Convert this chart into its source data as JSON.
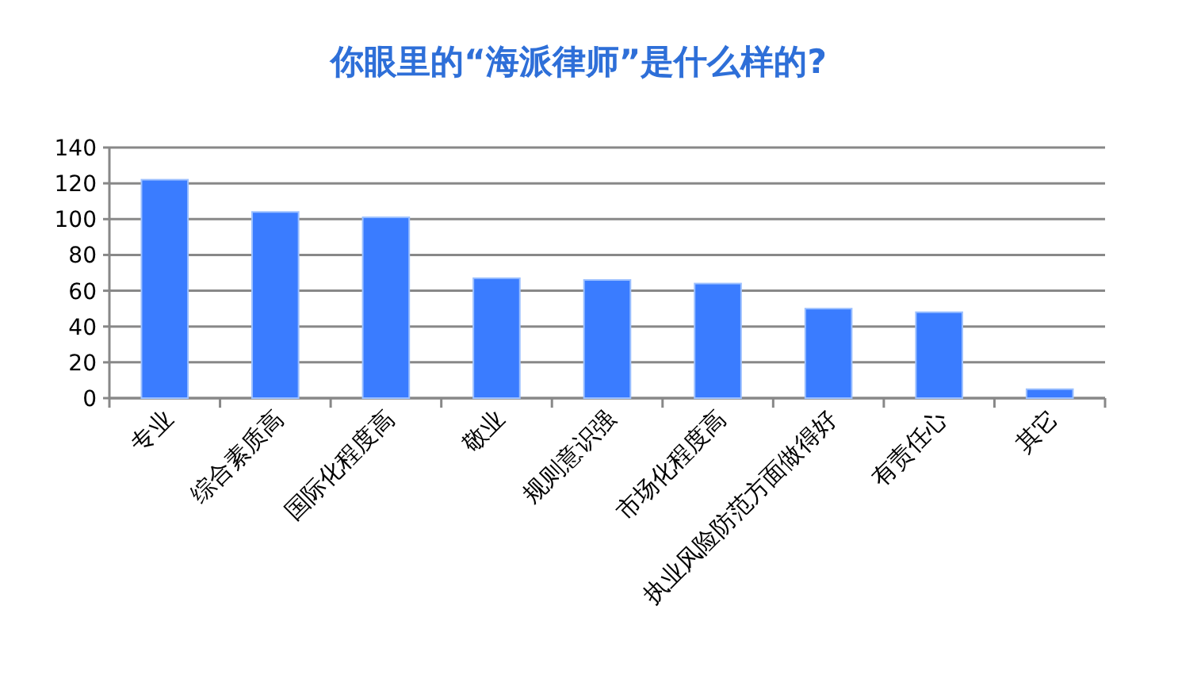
{
  "chart_data": {
    "type": "bar",
    "title": "你眼里的“海派律师”是什么样的?",
    "categories": [
      "专业",
      "综合素质高",
      "国际化程度高",
      "敬业",
      "规则意识强",
      "市场化程度高",
      "执业风险防范方面做得好",
      "有责任心",
      "其它"
    ],
    "values": [
      122,
      104,
      101,
      67,
      66,
      64,
      50,
      48,
      5
    ],
    "color": "#3a7cff",
    "ylim": [
      0,
      140
    ],
    "yticks": [
      0,
      20,
      40,
      60,
      80,
      100,
      120,
      140
    ],
    "grid": "y"
  }
}
